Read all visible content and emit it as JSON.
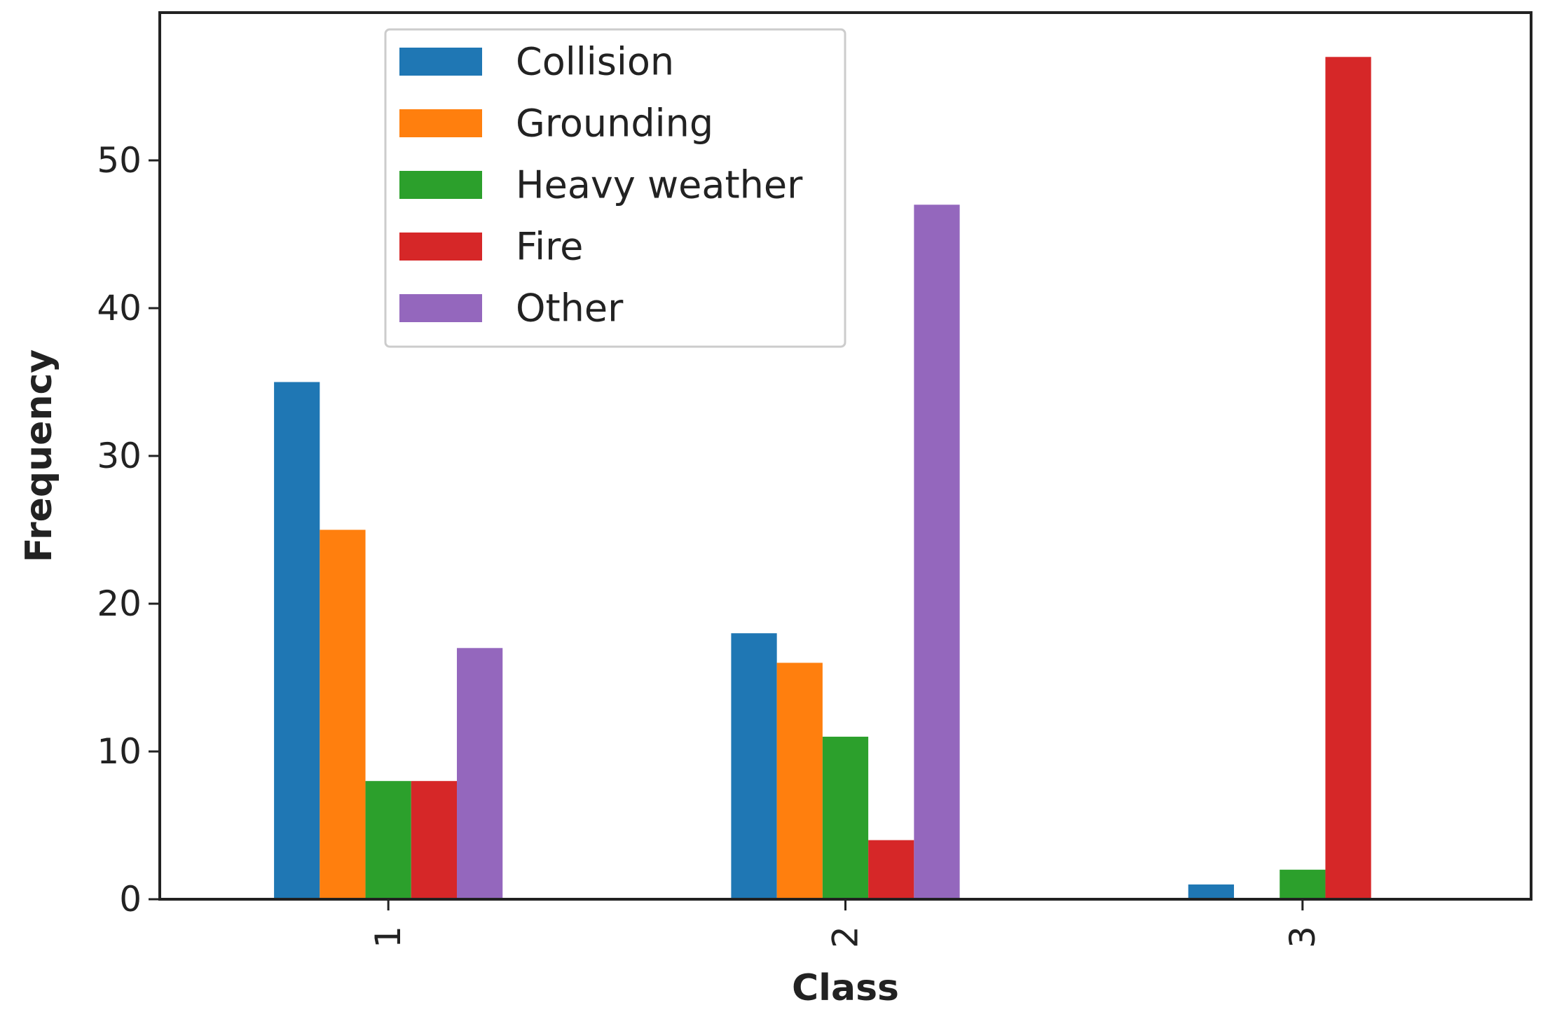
{
  "chart_data": {
    "type": "bar",
    "title": "",
    "xlabel": "Class",
    "ylabel": "Frequency",
    "categories": [
      "1",
      "2",
      "3"
    ],
    "ylim": [
      0,
      60
    ],
    "yticks": [
      0,
      10,
      20,
      30,
      40,
      50
    ],
    "grid": false,
    "legend_position": "top-left",
    "series": [
      {
        "name": "Collision",
        "color": "#1f77b4",
        "values": [
          35,
          18,
          1
        ]
      },
      {
        "name": "Grounding",
        "color": "#ff7f0e",
        "values": [
          25,
          16,
          0
        ]
      },
      {
        "name": "Heavy weather",
        "color": "#2ca02c",
        "values": [
          8,
          11,
          2
        ]
      },
      {
        "name": "Fire",
        "color": "#d62728",
        "values": [
          8,
          4,
          57
        ]
      },
      {
        "name": "Other",
        "color": "#9467bd",
        "values": [
          17,
          47,
          0
        ]
      }
    ]
  }
}
